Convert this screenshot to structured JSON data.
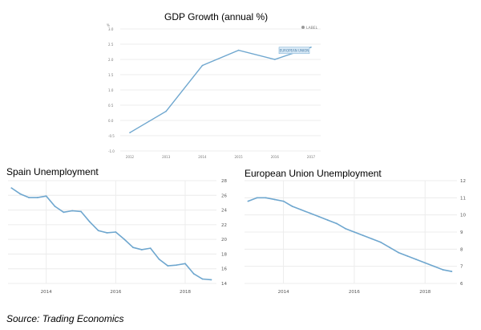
{
  "source": "Source: Trading Economics",
  "colors": {
    "line": "#6fa7cf",
    "grid": "#ececec",
    "axis_text": "#777777",
    "label_bg": "#d8e9f6"
  },
  "chart_data": [
    {
      "id": "gdp",
      "type": "line",
      "title": "GDP Growth (annual %)",
      "legend_label": "LABEL",
      "series_label": "EUROPEAN UNION",
      "x": [
        2012,
        2013,
        2014,
        2015,
        2016,
        2017
      ],
      "values": [
        -0.4,
        0.3,
        1.8,
        2.3,
        2.0,
        2.4
      ],
      "x_ticks": [
        "2012",
        "2013",
        "2014",
        "2015",
        "2016",
        "2017"
      ],
      "y_ticks": [
        "-1.0",
        "-0.5",
        "0.0",
        "0.5",
        "1.0",
        "1.5",
        "2.0",
        "2.5",
        "3.0"
      ],
      "y_unit": "%",
      "ylim": [
        -1.0,
        3.0
      ],
      "grid": true
    },
    {
      "id": "spain",
      "type": "line",
      "title": "Spain Unemployment",
      "x": [
        2013.0,
        2013.25,
        2013.5,
        2013.75,
        2014.0,
        2014.25,
        2014.5,
        2014.75,
        2015.0,
        2015.25,
        2015.5,
        2015.75,
        2016.0,
        2016.25,
        2016.5,
        2016.75,
        2017.0,
        2017.25,
        2017.5,
        2017.75,
        2018.0,
        2018.25,
        2018.5,
        2018.75
      ],
      "values": [
        27.0,
        26.2,
        25.7,
        25.7,
        25.9,
        24.5,
        23.7,
        23.9,
        23.8,
        22.4,
        21.2,
        20.9,
        21.0,
        20.0,
        18.9,
        18.6,
        18.8,
        17.3,
        16.4,
        16.5,
        16.7,
        15.3,
        14.6,
        14.5
      ],
      "x_ticks": [
        "2014",
        "2016",
        "2018"
      ],
      "x_tick_values": [
        2014,
        2016,
        2018
      ],
      "y_ticks": [
        "14",
        "16",
        "18",
        "20",
        "22",
        "24",
        "26",
        "28"
      ],
      "xlim": [
        2012.9,
        2018.9
      ],
      "ylim": [
        14,
        28
      ],
      "grid": true
    },
    {
      "id": "eu",
      "type": "line",
      "title": "European Union Unemployment",
      "x": [
        2013.0,
        2013.25,
        2013.5,
        2013.75,
        2014.0,
        2014.25,
        2014.5,
        2014.75,
        2015.0,
        2015.25,
        2015.5,
        2015.75,
        2016.0,
        2016.25,
        2016.5,
        2016.75,
        2017.0,
        2017.25,
        2017.5,
        2017.75,
        2018.0,
        2018.25,
        2018.5,
        2018.75
      ],
      "values": [
        10.8,
        11.0,
        11.0,
        10.9,
        10.8,
        10.5,
        10.3,
        10.1,
        9.9,
        9.7,
        9.5,
        9.2,
        9.0,
        8.8,
        8.6,
        8.4,
        8.1,
        7.8,
        7.6,
        7.4,
        7.2,
        7.0,
        6.8,
        6.7
      ],
      "x_ticks": [
        "2014",
        "2016",
        "2018"
      ],
      "x_tick_values": [
        2014,
        2016,
        2018
      ],
      "y_ticks": [
        "6",
        "7",
        "8",
        "9",
        "10",
        "11",
        "12"
      ],
      "xlim": [
        2012.9,
        2018.9
      ],
      "ylim": [
        6,
        12
      ],
      "grid": true
    }
  ]
}
